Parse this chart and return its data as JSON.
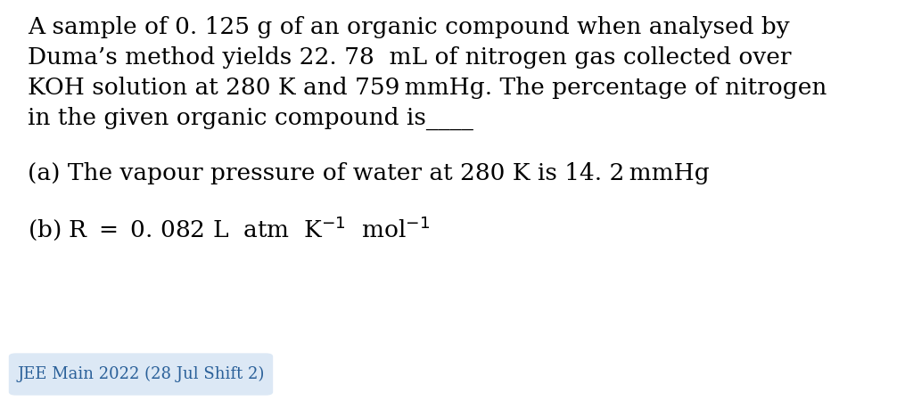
{
  "bg_color": "#ffffff",
  "text_color": "#000000",
  "badge_bg_color": "#dce8f5",
  "badge_text_color": "#2a6099",
  "badge_text": "JEE Main 2022 (28 Jul Shift 2)",
  "line1": "A sample of 0. 125 g of an organic compound when analysed by",
  "line2": "Duma’s method yields 22. 78  mL of nitrogen gas collected over",
  "line3": "KOH solution at 280 K and 759 mmHg. The percentage of nitrogen",
  "line4": "in the given organic compound is____",
  "line5": "(a) The vapour pressure of water at 280 K is 14. 2 mmHg",
  "line6": "(b) R = 0. 082 L  atm  K⁻¹  mol⁻¹",
  "font_size_main": 19,
  "font_size_badge": 13,
  "font_family": "DejaVu Serif"
}
